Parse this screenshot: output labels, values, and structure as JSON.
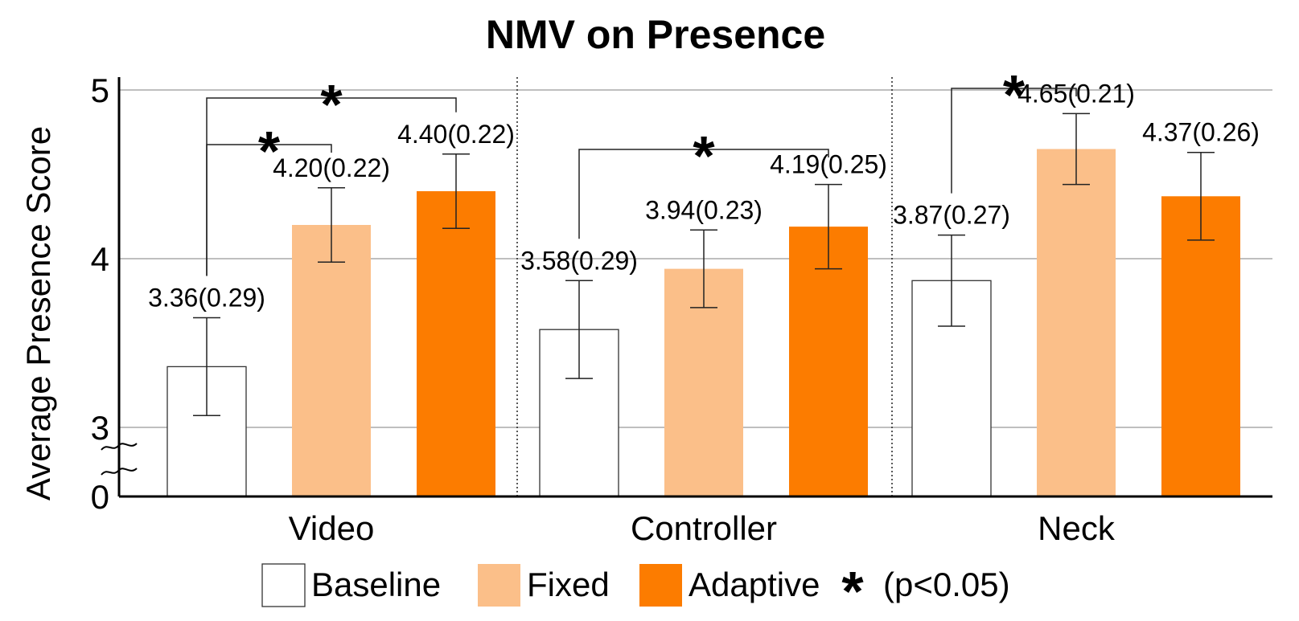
{
  "chart_data": {
    "type": "bar",
    "title": "NMV on Presence",
    "ylabel": "Average Presence Score",
    "xlabel": "",
    "ylim": [
      0,
      5
    ],
    "axis_break": true,
    "ytick_labels": [
      "0",
      "3",
      "4",
      "5"
    ],
    "yticks": [
      0,
      3,
      4,
      5
    ],
    "grid": "horizontal",
    "legend_position": "bottom",
    "categories": [
      "Video",
      "Controller",
      "Neck"
    ],
    "series": [
      {
        "name": "Baseline",
        "color": "#ffffff",
        "values": [
          3.36,
          3.58,
          3.87
        ],
        "errors": [
          0.29,
          0.29,
          0.27
        ],
        "labels": [
          "3.36(0.29)",
          "3.58(0.29)",
          "3.87(0.27)"
        ]
      },
      {
        "name": "Fixed",
        "color": "#fbbf89",
        "values": [
          4.2,
          3.94,
          4.65
        ],
        "errors": [
          0.22,
          0.23,
          0.21
        ],
        "labels": [
          "4.20(0.22)",
          "3.94(0.23)",
          "4.65(0.21)"
        ]
      },
      {
        "name": "Adaptive",
        "color": "#fc7c00",
        "values": [
          4.4,
          4.19,
          4.37
        ],
        "errors": [
          0.22,
          0.25,
          0.26
        ],
        "labels": [
          "4.40(0.22)",
          "4.19(0.25)",
          "4.37(0.26)"
        ]
      }
    ],
    "significance": [
      {
        "category": 0,
        "from": 0,
        "to": 1,
        "marker": "*"
      },
      {
        "category": 0,
        "from": 0,
        "to": 2,
        "marker": "*"
      },
      {
        "category": 1,
        "from": 0,
        "to": 2,
        "marker": "*"
      },
      {
        "category": 2,
        "from": 0,
        "to": 1,
        "marker": "*"
      }
    ],
    "legend_note": {
      "marker": "*",
      "text": "(p<0.05)"
    }
  }
}
